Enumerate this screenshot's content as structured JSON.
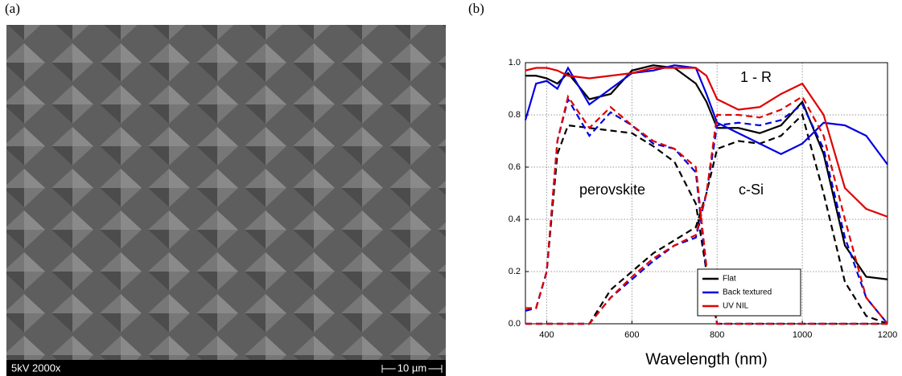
{
  "panel_a": {
    "label": "(a)",
    "info": "5kV  2000x",
    "scale": "10 µm"
  },
  "chart_data": {
    "type": "line",
    "label": "(b)",
    "xlabel": "Wavelength (nm)",
    "annotations": [
      "1 - R",
      "perovskite",
      "c-Si"
    ],
    "x": [
      350,
      375,
      400,
      425,
      450,
      500,
      550,
      600,
      650,
      700,
      750,
      775,
      800,
      850,
      900,
      950,
      1000,
      1050,
      1100,
      1150,
      1200
    ],
    "xlim": [
      350,
      1200
    ],
    "xticks": [
      400,
      600,
      800,
      1000,
      1200
    ],
    "ylim": [
      0,
      1
    ],
    "yticks": [
      {
        "value": 0,
        "label": "0.0"
      },
      {
        "value": 0.2,
        "label": "0.2"
      },
      {
        "value": 0.4,
        "label": "0.4"
      },
      {
        "value": 0.6,
        "label": "0.6"
      },
      {
        "value": 0.8,
        "label": "0.8"
      },
      {
        "value": 1,
        "label": "1.0"
      }
    ],
    "grid": true,
    "legend": "lower right",
    "series": [
      {
        "name": "Flat",
        "color": "#000000",
        "values": [
          0.95,
          0.95,
          0.94,
          0.92,
          0.96,
          0.86,
          0.88,
          0.97,
          0.99,
          0.98,
          0.92,
          0.85,
          0.75,
          0.75,
          0.73,
          0.76,
          0.85,
          0.65,
          0.3,
          0.18,
          0.17
        ],
        "perovskite": [
          0.05,
          0.06,
          0.2,
          0.65,
          0.76,
          0.75,
          0.74,
          0.73,
          0.68,
          0.62,
          0.46,
          0.2,
          0,
          0,
          0,
          0,
          0,
          0,
          0,
          0,
          0
        ],
        "c_si": [
          0,
          0,
          0,
          0,
          0,
          0,
          0.13,
          0.2,
          0.27,
          0.32,
          0.37,
          0.5,
          0.67,
          0.7,
          0.69,
          0.72,
          0.8,
          0.5,
          0.16,
          0.03,
          0
        ]
      },
      {
        "name": "Back textured",
        "color": "#0000e0",
        "values": [
          0.78,
          0.92,
          0.93,
          0.9,
          0.98,
          0.84,
          0.9,
          0.96,
          0.97,
          0.99,
          0.98,
          0.88,
          0.77,
          0.73,
          0.69,
          0.65,
          0.69,
          0.77,
          0.76,
          0.72,
          0.61
        ],
        "perovskite": [
          0.05,
          0.06,
          0.2,
          0.7,
          0.86,
          0.72,
          0.81,
          0.76,
          0.69,
          0.67,
          0.58,
          0.2,
          0,
          0,
          0,
          0,
          0,
          0,
          0,
          0,
          0
        ],
        "c_si": [
          0,
          0,
          0,
          0,
          0,
          0,
          0.1,
          0.17,
          0.24,
          0.3,
          0.33,
          0.5,
          0.76,
          0.77,
          0.76,
          0.78,
          0.84,
          0.67,
          0.33,
          0.1,
          0
        ]
      },
      {
        "name": "UV NIL",
        "color": "#e00000",
        "values": [
          0.97,
          0.98,
          0.98,
          0.97,
          0.95,
          0.94,
          0.95,
          0.96,
          0.98,
          0.98,
          0.98,
          0.95,
          0.86,
          0.82,
          0.83,
          0.88,
          0.92,
          0.8,
          0.52,
          0.44,
          0.41
        ],
        "perovskite": [
          0.06,
          0.06,
          0.2,
          0.7,
          0.87,
          0.75,
          0.83,
          0.76,
          0.7,
          0.67,
          0.6,
          0.22,
          0,
          0,
          0,
          0,
          0,
          0,
          0,
          0,
          0
        ],
        "c_si": [
          0,
          0,
          0,
          0,
          0,
          0,
          0.1,
          0.18,
          0.25,
          0.3,
          0.34,
          0.5,
          0.8,
          0.8,
          0.79,
          0.82,
          0.87,
          0.72,
          0.4,
          0.1,
          0
        ]
      }
    ]
  }
}
